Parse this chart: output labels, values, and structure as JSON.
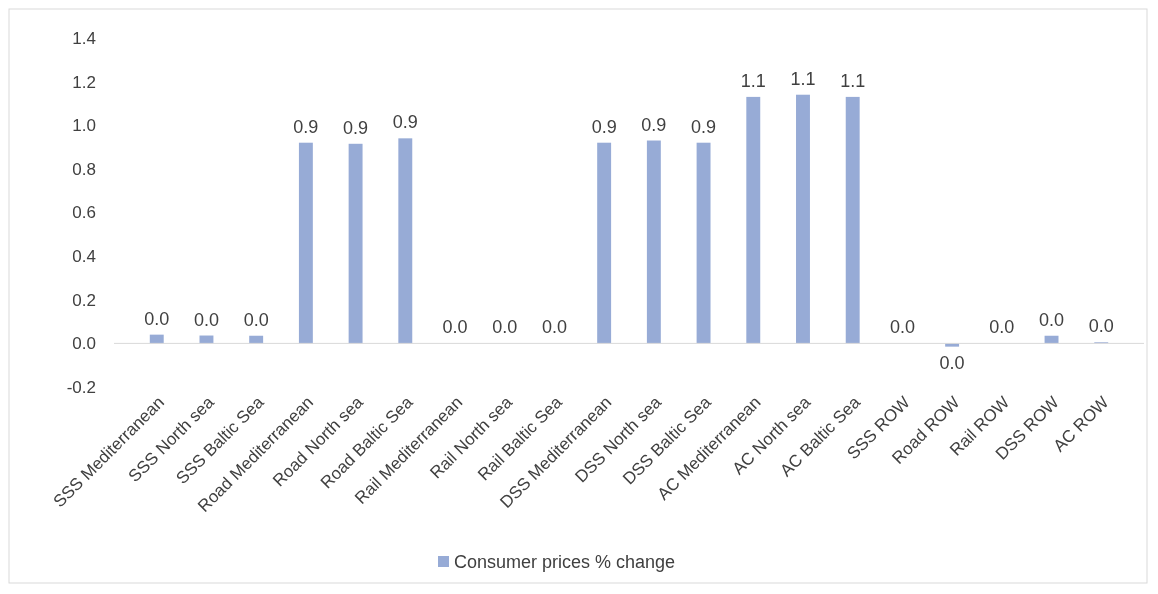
{
  "chart_data": {
    "type": "bar",
    "categories": [
      "SSS Mediterranean",
      "SSS North sea",
      "SSS Baltic Sea",
      "Road Mediterranean",
      "Road North sea",
      "Road Baltic Sea",
      "Rail Mediterranean",
      "Rail North sea",
      "Rail Baltic Sea",
      "DSS Mediterranean",
      "DSS North sea",
      "DSS Baltic Sea",
      "AC Mediterranean",
      "AC North sea",
      "AC Baltic Sea",
      "SSS ROW",
      "Road ROW",
      "Rail ROW",
      "DSS ROW",
      "AC ROW"
    ],
    "series": [
      {
        "name": "Consumer prices % change",
        "color": "#97abd6",
        "values": [
          0.04,
          0.036,
          0.035,
          0.92,
          0.915,
          0.94,
          0,
          0,
          0,
          0.92,
          0.93,
          0.92,
          1.13,
          1.14,
          1.13,
          0,
          -0.015,
          0,
          0.035,
          0.005
        ],
        "value_labels": [
          "0.0",
          "0.0",
          "0.0",
          "0.9",
          "0.9",
          "0.9",
          "0.0",
          "0.0",
          "0.0",
          "0.9",
          "0.9",
          "0.9",
          "1.1",
          "1.1",
          "1.1",
          "0.0",
          "0.0",
          "0.0",
          "0.0",
          "0.0"
        ]
      }
    ],
    "ylim": [
      -0.2,
      1.4
    ],
    "yticks": [
      {
        "value": -0.2,
        "label": "-0.2"
      },
      {
        "value": 0,
        "label": "0.0"
      },
      {
        "value": 0.2,
        "label": "0.2"
      },
      {
        "value": 0.4,
        "label": "0.4"
      },
      {
        "value": 0.6,
        "label": "0.6"
      },
      {
        "value": 0.8,
        "label": "0.8"
      },
      {
        "value": 1,
        "label": "1.0"
      },
      {
        "value": 1.2,
        "label": "1.2"
      },
      {
        "value": 1.4,
        "label": "1.4"
      }
    ],
    "legend": "bottom"
  }
}
